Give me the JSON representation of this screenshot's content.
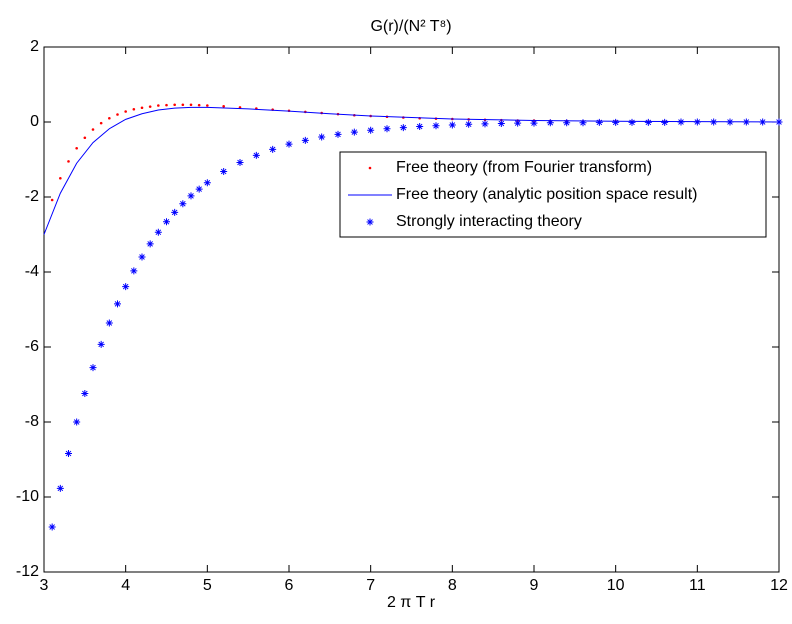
{
  "chart_data": {
    "type": "line",
    "title": "G(r)/(N² T⁸)",
    "xlabel": "2 π T r",
    "xlim": [
      3,
      12
    ],
    "ylim": [
      -12,
      2
    ],
    "xticks": [
      3,
      4,
      5,
      6,
      7,
      8,
      9,
      10,
      11,
      12
    ],
    "yticks": [
      -12,
      -10,
      -8,
      -6,
      -4,
      -2,
      0,
      2
    ],
    "grid": false,
    "legend": "east",
    "series": [
      {
        "name": "Free theory (from Fourier transform)",
        "color": "#ff0000",
        "marker": "dot",
        "x": [
          3.1,
          3.2,
          3.3,
          3.4,
          3.5,
          3.6,
          3.7,
          3.8,
          3.9,
          4.0,
          4.1,
          4.2,
          4.3,
          4.4,
          4.5,
          4.6,
          4.7,
          4.8,
          4.9,
          5.0,
          5.2,
          5.4,
          5.6,
          5.8,
          6.0,
          6.2,
          6.4,
          6.6,
          6.8,
          7.0,
          7.2,
          7.4,
          7.6,
          7.8,
          8.0,
          8.2,
          8.4,
          8.6,
          8.8,
          9.0,
          9.2,
          9.4,
          9.6,
          9.8,
          10.0,
          10.2,
          10.4,
          10.6,
          10.8,
          11.0,
          11.2,
          11.4,
          11.6,
          11.8,
          12.0
        ],
        "values": [
          -2.08,
          -1.5,
          -1.05,
          -0.7,
          -0.42,
          -0.2,
          -0.03,
          0.1,
          0.2,
          0.28,
          0.34,
          0.38,
          0.41,
          0.44,
          0.45,
          0.46,
          0.46,
          0.46,
          0.45,
          0.44,
          0.42,
          0.39,
          0.36,
          0.33,
          0.3,
          0.27,
          0.24,
          0.21,
          0.18,
          0.16,
          0.14,
          0.12,
          0.1,
          0.09,
          0.08,
          0.07,
          0.06,
          0.05,
          0.04,
          0.04,
          0.03,
          0.03,
          0.02,
          0.02,
          0.02,
          0.01,
          0.01,
          0.01,
          0.01,
          0.01,
          0,
          0,
          0,
          0,
          0
        ]
      },
      {
        "name": "Free theory (analytic position space result)",
        "color": "#0000ff",
        "marker": "line",
        "x": [
          3.0,
          3.2,
          3.4,
          3.6,
          3.8,
          4.0,
          4.2,
          4.4,
          4.6,
          4.8,
          5.0,
          5.5,
          6.0,
          6.5,
          7.0,
          7.5,
          8.0,
          9.0,
          10.0,
          11.0,
          12.0
        ],
        "values": [
          -3.0,
          -1.9,
          -1.1,
          -0.55,
          -0.18,
          0.07,
          0.22,
          0.32,
          0.37,
          0.39,
          0.39,
          0.35,
          0.29,
          0.22,
          0.16,
          0.12,
          0.08,
          0.04,
          0.02,
          0.01,
          0
        ]
      },
      {
        "name": "Strongly interacting theory",
        "color": "#0000ff",
        "marker": "star",
        "x": [
          3.1,
          3.2,
          3.3,
          3.4,
          3.5,
          3.6,
          3.7,
          3.8,
          3.9,
          4.0,
          4.1,
          4.2,
          4.3,
          4.4,
          4.5,
          4.6,
          4.7,
          4.8,
          4.9,
          5.0,
          5.2,
          5.4,
          5.6,
          5.8,
          6.0,
          6.2,
          6.4,
          6.6,
          6.8,
          7.0,
          7.2,
          7.4,
          7.6,
          7.8,
          8.0,
          8.2,
          8.4,
          8.6,
          8.8,
          9.0,
          9.2,
          9.4,
          9.6,
          9.8,
          10.0,
          10.2,
          10.4,
          10.6,
          10.8,
          11.0,
          11.2,
          11.4,
          11.6,
          11.8,
          12.0
        ],
        "values": [
          -10.8,
          -9.77,
          -8.84,
          -8.0,
          -7.24,
          -6.55,
          -5.93,
          -5.36,
          -4.85,
          -4.39,
          -3.97,
          -3.6,
          -3.25,
          -2.94,
          -2.66,
          -2.41,
          -2.18,
          -1.97,
          -1.79,
          -1.62,
          -1.32,
          -1.08,
          -0.89,
          -0.73,
          -0.59,
          -0.49,
          -0.4,
          -0.33,
          -0.27,
          -0.22,
          -0.18,
          -0.15,
          -0.12,
          -0.1,
          -0.08,
          -0.06,
          -0.05,
          -0.04,
          -0.03,
          -0.03,
          -0.02,
          -0.02,
          -0.02,
          -0.01,
          -0.01,
          -0.01,
          -0.01,
          -0.01,
          0,
          0,
          0,
          0,
          0,
          0,
          0
        ]
      }
    ]
  }
}
